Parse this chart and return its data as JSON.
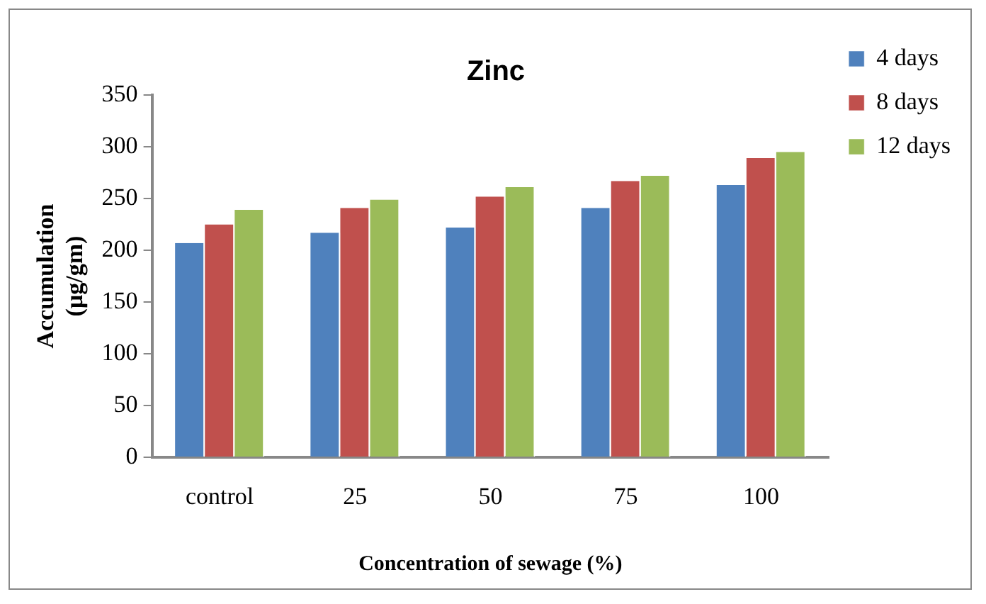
{
  "chart_data": {
    "type": "bar",
    "title": "Zinc",
    "xlabel": "Concentration of sewage (%)",
    "ylabel": "Accumulation (µg/gm)",
    "categories": [
      "control",
      "25",
      "50",
      "75",
      "100"
    ],
    "series": [
      {
        "name": "4 days",
        "color": "#4f81bd",
        "values": [
          207,
          217,
          222,
          241,
          263
        ]
      },
      {
        "name": "8 days",
        "color": "#c0504d",
        "values": [
          225,
          241,
          252,
          267,
          289
        ]
      },
      {
        "name": "12 days",
        "color": "#9bbb59",
        "values": [
          239,
          249,
          261,
          272,
          295
        ]
      }
    ],
    "ylim": [
      0,
      350
    ],
    "yticks": [
      0,
      50,
      100,
      150,
      200,
      250,
      300,
      350
    ],
    "grid": false,
    "legend": "top right"
  }
}
